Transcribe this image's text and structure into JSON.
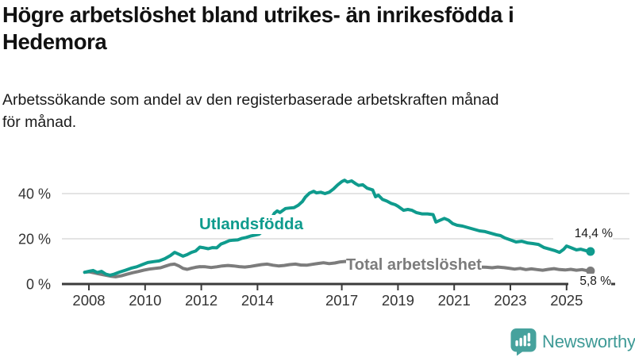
{
  "header": {
    "title_lines": [
      "Högre arbetslöshet bland utrikes- än inrikesfödda i",
      "Hedemora"
    ],
    "subtitle_lines": [
      "Arbetssökande som andel av den registerbaserade arbetskraften månad",
      "för månad."
    ]
  },
  "footer": {
    "brand": "Newsworthy"
  },
  "colors": {
    "accent_teal": "#0f9b8d",
    "series_gray": "#7c7c7c",
    "axis": "#3b3b3b",
    "grid": "#dcdcdc",
    "tick_text": "#333333",
    "brand_logo": "#46a29d",
    "brand_wordmark": "#3e9a96"
  },
  "chart_data": {
    "type": "line",
    "title": "Högre arbetslöshet bland utrikes- än inrikesfödda i Hedemora",
    "subtitle": "Arbetssökande som andel av den registerbaserade arbetskraften månad för månad.",
    "unit": "%",
    "grid": true,
    "legend_position": "inline-labels",
    "x_axis": {
      "label": "",
      "range": [
        2007.1,
        2026.3
      ],
      "ticks": [
        2008,
        2010,
        2012,
        2014,
        2017,
        2019,
        2021,
        2023,
        2025
      ],
      "tick_labels": [
        "2008",
        "2010",
        "2012",
        "2014",
        "2017",
        "2019",
        "2021",
        "2023",
        "2025"
      ]
    },
    "y_axis": {
      "label": "",
      "range": [
        0,
        50
      ],
      "ticks": [
        0,
        20,
        40
      ],
      "tick_labels": [
        "0 %",
        "20 %",
        "40 %"
      ]
    },
    "series": [
      {
        "name": "Utlandsfödda",
        "color": "#0f9b8d",
        "end_value": 14.4,
        "end_label": "14,4 %",
        "points": [
          [
            2007.85,
            5.2
          ],
          [
            2008.0,
            5.6
          ],
          [
            2008.15,
            6.0
          ],
          [
            2008.3,
            5.1
          ],
          [
            2008.45,
            5.6
          ],
          [
            2008.6,
            4.4
          ],
          [
            2008.75,
            3.9
          ],
          [
            2008.9,
            4.4
          ],
          [
            2009.1,
            5.3
          ],
          [
            2009.3,
            6.1
          ],
          [
            2009.5,
            7.0
          ],
          [
            2009.7,
            7.6
          ],
          [
            2009.9,
            8.6
          ],
          [
            2010.1,
            9.5
          ],
          [
            2010.3,
            9.9
          ],
          [
            2010.5,
            10.2
          ],
          [
            2010.7,
            11.2
          ],
          [
            2010.9,
            12.6
          ],
          [
            2011.05,
            14.0
          ],
          [
            2011.2,
            13.2
          ],
          [
            2011.35,
            12.3
          ],
          [
            2011.5,
            13.0
          ],
          [
            2011.65,
            14.0
          ],
          [
            2011.8,
            14.6
          ],
          [
            2011.95,
            16.3
          ],
          [
            2012.1,
            16.0
          ],
          [
            2012.25,
            15.6
          ],
          [
            2012.4,
            16.1
          ],
          [
            2012.55,
            16.0
          ],
          [
            2012.7,
            17.7
          ],
          [
            2012.85,
            18.4
          ],
          [
            2013.0,
            19.2
          ],
          [
            2013.15,
            19.4
          ],
          [
            2013.3,
            19.5
          ],
          [
            2013.45,
            20.2
          ],
          [
            2013.6,
            20.6
          ],
          [
            2013.75,
            21.2
          ],
          [
            2013.9,
            21.6
          ],
          [
            2014.05,
            22.0
          ],
          [
            2014.2,
            23.5
          ],
          [
            2014.35,
            26.0
          ],
          [
            2014.5,
            29.0
          ],
          [
            2014.6,
            31.3
          ],
          [
            2014.7,
            32.3
          ],
          [
            2014.8,
            31.6
          ],
          [
            2015.0,
            33.4
          ],
          [
            2015.15,
            33.6
          ],
          [
            2015.3,
            33.8
          ],
          [
            2015.45,
            34.8
          ],
          [
            2015.6,
            36.5
          ],
          [
            2015.7,
            38.4
          ],
          [
            2015.85,
            40.2
          ],
          [
            2016.0,
            41.0
          ],
          [
            2016.1,
            40.3
          ],
          [
            2016.25,
            40.6
          ],
          [
            2016.4,
            40.0
          ],
          [
            2016.55,
            40.6
          ],
          [
            2016.7,
            42.0
          ],
          [
            2016.85,
            43.8
          ],
          [
            2017.0,
            45.3
          ],
          [
            2017.1,
            45.9
          ],
          [
            2017.2,
            45.1
          ],
          [
            2017.35,
            45.6
          ],
          [
            2017.5,
            44.3
          ],
          [
            2017.6,
            43.6
          ],
          [
            2017.75,
            43.9
          ],
          [
            2017.9,
            42.4
          ],
          [
            2018.0,
            42.0
          ],
          [
            2018.1,
            41.6
          ],
          [
            2018.2,
            38.6
          ],
          [
            2018.3,
            39.3
          ],
          [
            2018.45,
            37.4
          ],
          [
            2018.6,
            36.7
          ],
          [
            2018.75,
            35.7
          ],
          [
            2018.9,
            35.1
          ],
          [
            2019.0,
            34.4
          ],
          [
            2019.2,
            32.6
          ],
          [
            2019.35,
            33.0
          ],
          [
            2019.5,
            32.6
          ],
          [
            2019.65,
            31.6
          ],
          [
            2019.85,
            31.0
          ],
          [
            2020.05,
            31.0
          ],
          [
            2020.25,
            30.7
          ],
          [
            2020.35,
            27.4
          ],
          [
            2020.5,
            28.2
          ],
          [
            2020.65,
            29.0
          ],
          [
            2020.8,
            28.2
          ],
          [
            2020.95,
            26.7
          ],
          [
            2021.1,
            26.0
          ],
          [
            2021.3,
            25.6
          ],
          [
            2021.5,
            24.9
          ],
          [
            2021.7,
            24.2
          ],
          [
            2021.9,
            23.5
          ],
          [
            2022.1,
            23.2
          ],
          [
            2022.3,
            22.5
          ],
          [
            2022.5,
            21.8
          ],
          [
            2022.65,
            21.4
          ],
          [
            2022.8,
            20.4
          ],
          [
            2023.0,
            19.5
          ],
          [
            2023.2,
            18.6
          ],
          [
            2023.4,
            18.9
          ],
          [
            2023.6,
            18.2
          ],
          [
            2023.8,
            17.9
          ],
          [
            2024.0,
            17.5
          ],
          [
            2024.2,
            16.1
          ],
          [
            2024.4,
            15.4
          ],
          [
            2024.6,
            14.7
          ],
          [
            2024.75,
            14.0
          ],
          [
            2024.9,
            15.4
          ],
          [
            2025.0,
            16.8
          ],
          [
            2025.15,
            16.1
          ],
          [
            2025.35,
            15.1
          ],
          [
            2025.5,
            15.4
          ],
          [
            2025.7,
            14.7
          ],
          [
            2025.85,
            14.4
          ]
        ]
      },
      {
        "name": "Total arbetslöshet",
        "color": "#7c7c7c",
        "end_value": 5.8,
        "end_label": "5,8 %",
        "points": [
          [
            2007.85,
            5.2
          ],
          [
            2008.0,
            5.4
          ],
          [
            2008.2,
            4.9
          ],
          [
            2008.4,
            4.4
          ],
          [
            2008.6,
            3.9
          ],
          [
            2008.8,
            3.4
          ],
          [
            2008.95,
            3.2
          ],
          [
            2009.15,
            3.6
          ],
          [
            2009.35,
            4.3
          ],
          [
            2009.55,
            5.0
          ],
          [
            2009.75,
            5.5
          ],
          [
            2009.95,
            6.1
          ],
          [
            2010.15,
            6.6
          ],
          [
            2010.35,
            6.9
          ],
          [
            2010.55,
            7.2
          ],
          [
            2010.75,
            8.0
          ],
          [
            2010.9,
            8.6
          ],
          [
            2011.05,
            8.8
          ],
          [
            2011.2,
            8.0
          ],
          [
            2011.35,
            6.9
          ],
          [
            2011.5,
            6.5
          ],
          [
            2011.65,
            7.0
          ],
          [
            2011.8,
            7.4
          ],
          [
            2011.95,
            7.7
          ],
          [
            2012.15,
            7.6
          ],
          [
            2012.35,
            7.3
          ],
          [
            2012.55,
            7.6
          ],
          [
            2012.75,
            8.0
          ],
          [
            2012.95,
            8.2
          ],
          [
            2013.15,
            8.0
          ],
          [
            2013.35,
            7.7
          ],
          [
            2013.55,
            7.5
          ],
          [
            2013.75,
            7.8
          ],
          [
            2013.95,
            8.2
          ],
          [
            2014.15,
            8.6
          ],
          [
            2014.35,
            8.8
          ],
          [
            2014.55,
            8.3
          ],
          [
            2014.75,
            8.0
          ],
          [
            2014.95,
            8.2
          ],
          [
            2015.15,
            8.6
          ],
          [
            2015.35,
            8.8
          ],
          [
            2015.55,
            8.4
          ],
          [
            2015.75,
            8.3
          ],
          [
            2015.95,
            8.7
          ],
          [
            2016.15,
            9.1
          ],
          [
            2016.35,
            9.4
          ],
          [
            2016.55,
            9.0
          ],
          [
            2016.75,
            9.3
          ],
          [
            2016.95,
            9.8
          ],
          [
            2017.15,
            10.0
          ],
          [
            2017.35,
            9.6
          ],
          [
            2017.55,
            9.3
          ],
          [
            2017.75,
            9.5
          ],
          [
            2017.95,
            9.2
          ],
          [
            2018.15,
            9.0
          ],
          [
            2018.35,
            8.7
          ],
          [
            2018.55,
            8.5
          ],
          [
            2018.75,
            8.3
          ],
          [
            2018.95,
            8.5
          ],
          [
            2019.15,
            8.3
          ],
          [
            2019.35,
            8.0
          ],
          [
            2019.55,
            7.9
          ],
          [
            2019.75,
            8.1
          ],
          [
            2019.95,
            8.4
          ],
          [
            2020.15,
            8.8
          ],
          [
            2020.35,
            9.1
          ],
          [
            2020.55,
            9.3
          ],
          [
            2020.75,
            9.0
          ],
          [
            2020.95,
            8.7
          ],
          [
            2021.15,
            8.5
          ],
          [
            2021.35,
            8.2
          ],
          [
            2021.55,
            7.9
          ],
          [
            2021.75,
            7.7
          ],
          [
            2021.95,
            7.5
          ],
          [
            2022.15,
            7.4
          ],
          [
            2022.35,
            7.2
          ],
          [
            2022.55,
            7.5
          ],
          [
            2022.75,
            7.3
          ],
          [
            2022.95,
            7.0
          ],
          [
            2023.15,
            6.6
          ],
          [
            2023.35,
            6.9
          ],
          [
            2023.55,
            6.4
          ],
          [
            2023.75,
            6.7
          ],
          [
            2023.95,
            6.4
          ],
          [
            2024.15,
            6.1
          ],
          [
            2024.35,
            6.5
          ],
          [
            2024.55,
            6.8
          ],
          [
            2024.75,
            6.4
          ],
          [
            2024.95,
            6.2
          ],
          [
            2025.15,
            6.5
          ],
          [
            2025.35,
            6.1
          ],
          [
            2025.55,
            6.4
          ],
          [
            2025.7,
            6.0
          ],
          [
            2025.85,
            5.8
          ]
        ]
      }
    ]
  }
}
